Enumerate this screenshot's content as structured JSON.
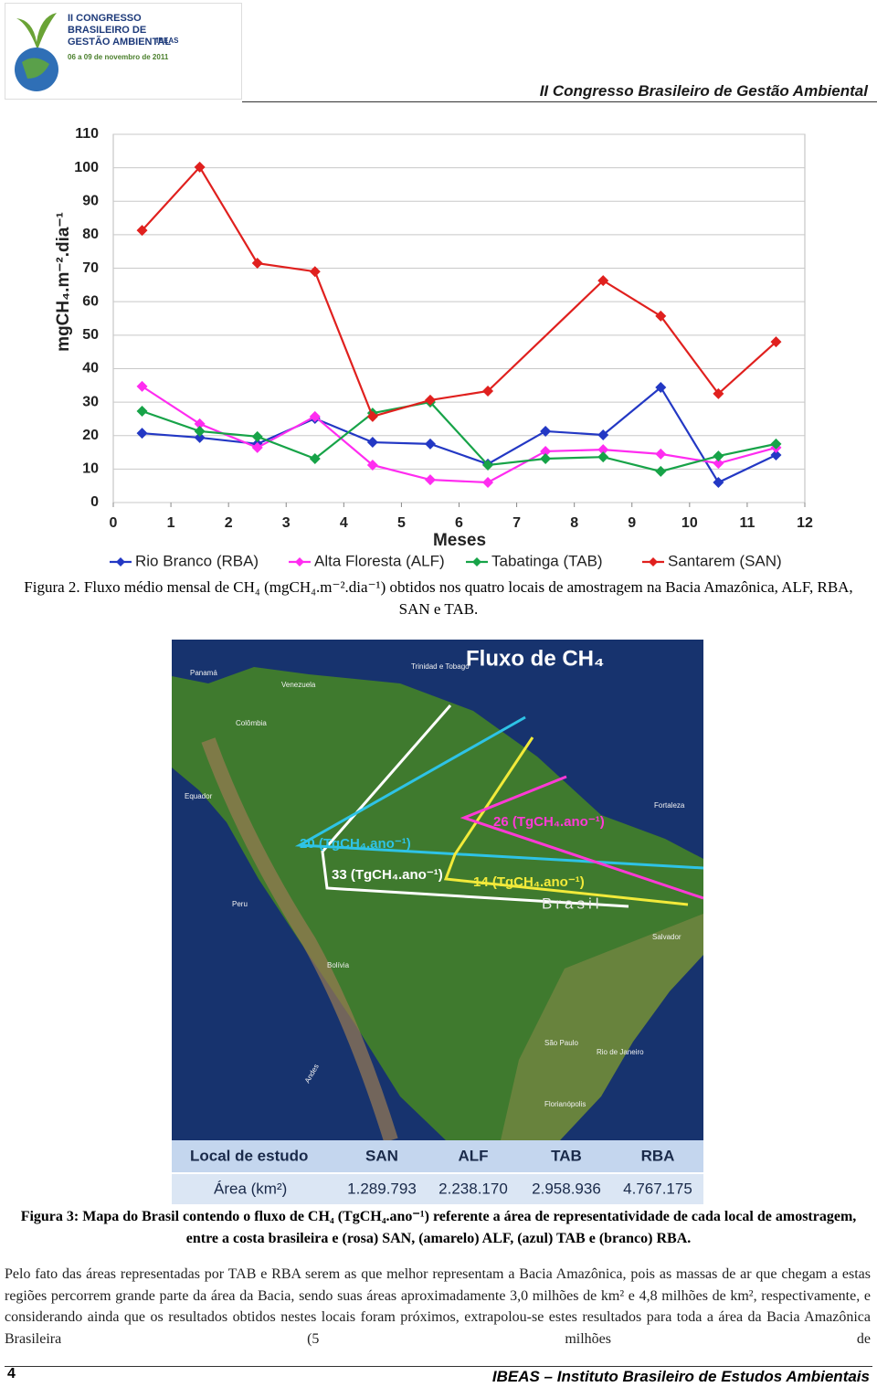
{
  "header": {
    "logo_lines": [
      "II CONGRESSO",
      "BRASILEIRO DE",
      "GESTÃO AMBIENTAL",
      "06 a 09 de novembro de 2011",
      "IBEAS"
    ],
    "title": "II Congresso Brasileiro de Gestão Ambiental"
  },
  "chart_data": {
    "type": "line",
    "y_label": "mgCH₄.m⁻².dia⁻¹",
    "x_label": "Meses",
    "x": [
      0.5,
      1.5,
      2.5,
      3.5,
      4.5,
      5.5,
      6.5,
      7.5,
      8.5,
      9.5,
      10.5,
      11.5
    ],
    "xlim": [
      0,
      12
    ],
    "xticks": [
      0,
      1,
      2,
      3,
      4,
      5,
      6,
      7,
      8,
      9,
      10,
      11,
      12
    ],
    "ylim": [
      0,
      110
    ],
    "yticks": [
      0,
      10,
      20,
      30,
      40,
      50,
      60,
      70,
      80,
      90,
      100,
      110
    ],
    "grid": true,
    "legend": "bottom",
    "series": [
      {
        "name": "Rio Branco (RBA)",
        "color": "#2338c4",
        "values": [
          20.7,
          19.4,
          17.5,
          25.1,
          18,
          17.5,
          11.5,
          21.3,
          20.2,
          34.4,
          6,
          14.2
        ]
      },
      {
        "name": "Alta Floresta (ALF)",
        "color": "#ff2cf0",
        "values": [
          34.7,
          23.5,
          16.4,
          25.7,
          11.2,
          6.8,
          6,
          15.3,
          15.8,
          14.5,
          11.7,
          16.4
        ]
      },
      {
        "name": "Tabatinga (TAB)",
        "color": "#17a348",
        "values": [
          27.3,
          21.3,
          19.7,
          13.1,
          26.7,
          30,
          11.2,
          13.1,
          13.6,
          9.3,
          13.9,
          17.5
        ]
      },
      {
        "name": "Santarem (SAN)",
        "color": "#e0201e",
        "x": [
          0.5,
          1.5,
          2.5,
          3.5,
          4.5,
          5.5,
          6.5,
          8.5,
          9.5,
          10.5,
          11.5
        ],
        "values": [
          81.3,
          100.2,
          71.5,
          69,
          25.7,
          30.6,
          33.3,
          66.3,
          55.7,
          32.5,
          48
        ]
      }
    ]
  },
  "figure2_caption": "Figura 2. Fluxo médio mensal de CH₄ (mgCH₄.m⁻².dia⁻¹) obtidos nos quatro locais de amostragem na Bacia Amazônica, ALF, RBA, SAN e TAB.",
  "map": {
    "title": "Fluxo de CH₄",
    "flux_labels": [
      "20 (TgCH₄.ano⁻¹)",
      "33 (TgCH₄.ano⁻¹)",
      "26 (TgCH₄.ano⁻¹)",
      "14 (TgCH₄.ano⁻¹)"
    ],
    "country_label": "Brasil",
    "places": [
      "Panamá",
      "Venezuela",
      "Trinidad e Tobago",
      "Colômbia",
      "Equador",
      "Peru",
      "Bolívia",
      "Fortaleza",
      "Salvador",
      "São Paulo",
      "Rio de Janeiro",
      "Florianópolis",
      "Andes"
    ],
    "table": {
      "header": [
        "Local de estudo",
        "SAN",
        "ALF",
        "TAB",
        "RBA"
      ],
      "row": [
        "Área (km²)",
        "1.289.793",
        "2.238.170",
        "2.958.936",
        "4.767.175"
      ]
    }
  },
  "figure3_caption": "Figura 3: Mapa do Brasil contendo o fluxo de CH₄ (TgCH₄.ano⁻¹) referente a área de representatividade de cada local de amostragem, entre a costa brasileira e (rosa) SAN, (amarelo) ALF, (azul) TAB e (branco) RBA.",
  "paragraph": "Pelo fato das áreas representadas por TAB e RBA serem as que melhor representam a Bacia Amazônica, pois as massas de ar que chegam a estas regiões percorrem grande parte da área da Bacia, sendo suas áreas aproximadamente 3,0 milhões de km² e 4,8 milhões de km², respectivamente, e considerando ainda que os resultados obtidos nestes locais foram próximos, extrapolou-se estes resultados para toda a área da Bacia Amazônica Brasileira (5 milhões de",
  "footer": {
    "page_number": "4",
    "text": "IBEAS – Instituto Brasileiro de Estudos Ambientais"
  }
}
